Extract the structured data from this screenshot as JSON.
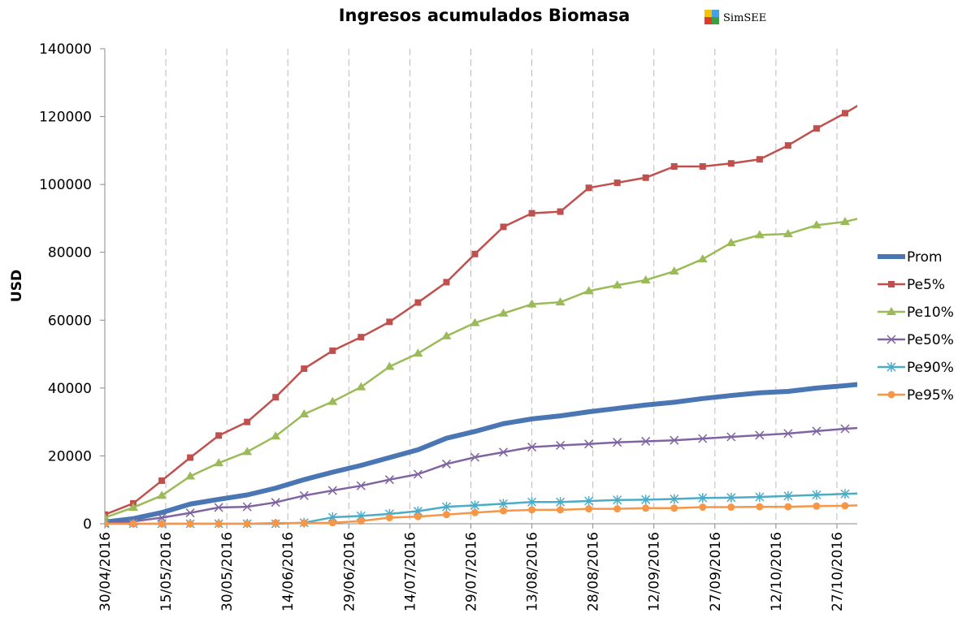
{
  "chart_data": {
    "type": "line",
    "title": "Ingresos acumulados Biomasa",
    "logo": "SimSEE",
    "ylabel": "USD",
    "x": [
      0,
      7,
      14,
      21,
      28,
      35,
      42,
      49,
      56,
      63,
      70,
      77,
      84,
      91,
      98,
      105,
      112,
      119,
      126,
      133,
      140,
      147,
      154,
      161,
      168,
      175,
      182,
      189
    ],
    "xlim": [
      0,
      185
    ],
    "xticks": [
      {
        "value": 0,
        "label": "30/04/2016"
      },
      {
        "value": 15,
        "label": "15/05/2016"
      },
      {
        "value": 30,
        "label": "30/05/2016"
      },
      {
        "value": 45,
        "label": "14/06/2016"
      },
      {
        "value": 60,
        "label": "29/06/2016"
      },
      {
        "value": 75,
        "label": "14/07/2016"
      },
      {
        "value": 90,
        "label": "29/07/2016"
      },
      {
        "value": 105,
        "label": "13/08/2016"
      },
      {
        "value": 120,
        "label": "28/08/2016"
      },
      {
        "value": 135,
        "label": "12/09/2016"
      },
      {
        "value": 150,
        "label": "27/09/2016"
      },
      {
        "value": 165,
        "label": "12/10/2016"
      },
      {
        "value": 180,
        "label": "27/10/2016"
      }
    ],
    "ylim": [
      0,
      140000
    ],
    "yticks": [
      0,
      20000,
      40000,
      60000,
      80000,
      100000,
      120000,
      140000
    ],
    "grid": "x",
    "legend": "right",
    "series": [
      {
        "name": "Prom",
        "color": "#4a76b4",
        "marker": "none",
        "width": 6,
        "values": [
          500,
          1500,
          3300,
          5800,
          7200,
          8500,
          10500,
          13000,
          15200,
          17200,
          19500,
          21800,
          25200,
          27200,
          29500,
          30900,
          31800,
          33000,
          34000,
          35000,
          35800,
          36900,
          37800,
          38600,
          39000,
          40000,
          40700,
          41500
        ]
      },
      {
        "name": "Pe5%",
        "color": "#c0504d",
        "marker": "square",
        "width": 2.5,
        "values": [
          2700,
          6000,
          12700,
          19500,
          26000,
          30000,
          37300,
          45700,
          51000,
          55000,
          59500,
          65200,
          71200,
          79500,
          87500,
          91500,
          92000,
          99000,
          100500,
          102000,
          105300,
          105300,
          106200,
          107400,
          111500,
          116500,
          121000,
          126000
        ]
      },
      {
        "name": "Pe10%",
        "color": "#9bbb59",
        "marker": "triangle",
        "width": 2.5,
        "values": [
          1800,
          4800,
          8300,
          14000,
          17900,
          21200,
          25800,
          32300,
          36000,
          40300,
          46300,
          50200,
          55300,
          59200,
          62000,
          64700,
          65300,
          68600,
          70300,
          71800,
          74400,
          78000,
          82800,
          85100,
          85400,
          88000,
          89000,
          91000
        ]
      },
      {
        "name": "Pe50%",
        "color": "#8064a2",
        "marker": "x",
        "width": 2.5,
        "values": [
          200,
          700,
          1800,
          3200,
          4800,
          5000,
          6300,
          8300,
          9800,
          11200,
          13000,
          14600,
          17600,
          19600,
          21100,
          22600,
          23100,
          23500,
          24000,
          24300,
          24600,
          25100,
          25600,
          26100,
          26600,
          27300,
          28000,
          28500
        ]
      },
      {
        "name": "Pe90%",
        "color": "#4bacc6",
        "marker": "star",
        "width": 2.5,
        "values": [
          0,
          0,
          0,
          0,
          0,
          0,
          0,
          300,
          1900,
          2300,
          2900,
          3700,
          5000,
          5400,
          5900,
          6400,
          6400,
          6700,
          7000,
          7100,
          7300,
          7600,
          7700,
          7900,
          8200,
          8500,
          8800,
          9100
        ]
      },
      {
        "name": "Pe95%",
        "color": "#f79646",
        "marker": "circle",
        "width": 2.5,
        "values": [
          0,
          0,
          0,
          0,
          0,
          0,
          200,
          200,
          300,
          800,
          1800,
          2100,
          2700,
          3300,
          3800,
          4100,
          4100,
          4400,
          4400,
          4600,
          4600,
          4900,
          4900,
          5000,
          5000,
          5200,
          5300,
          5600
        ]
      }
    ]
  }
}
